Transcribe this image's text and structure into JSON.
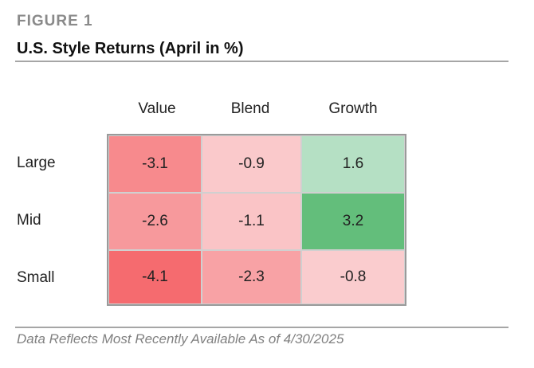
{
  "figure_label": "FIGURE 1",
  "title": "U.S. Style Returns (April in %)",
  "footnote": "Data Reflects Most Recently Available As of 4/30/2025",
  "chart_data": {
    "type": "heatmap",
    "title": "U.S. Style Returns (April in %)",
    "columns": [
      "Value",
      "Blend",
      "Growth"
    ],
    "rows": [
      "Large",
      "Mid",
      "Small"
    ],
    "values": [
      [
        -3.1,
        -0.9,
        1.6
      ],
      [
        -2.6,
        -1.1,
        3.2
      ],
      [
        -4.1,
        -2.3,
        -0.8
      ]
    ],
    "value_labels": [
      [
        "-3.1",
        "-0.9",
        "1.6"
      ],
      [
        "-2.6",
        "-1.1",
        "3.2"
      ],
      [
        "-4.1",
        "-2.3",
        "-0.8"
      ]
    ],
    "colors": {
      "negative_strong": "#f56b6f",
      "negative_light": "#fbdfe1",
      "positive_light": "#b5e0c4",
      "positive_strong": "#63be7b",
      "grid_border": "#9a9a9a"
    }
  }
}
